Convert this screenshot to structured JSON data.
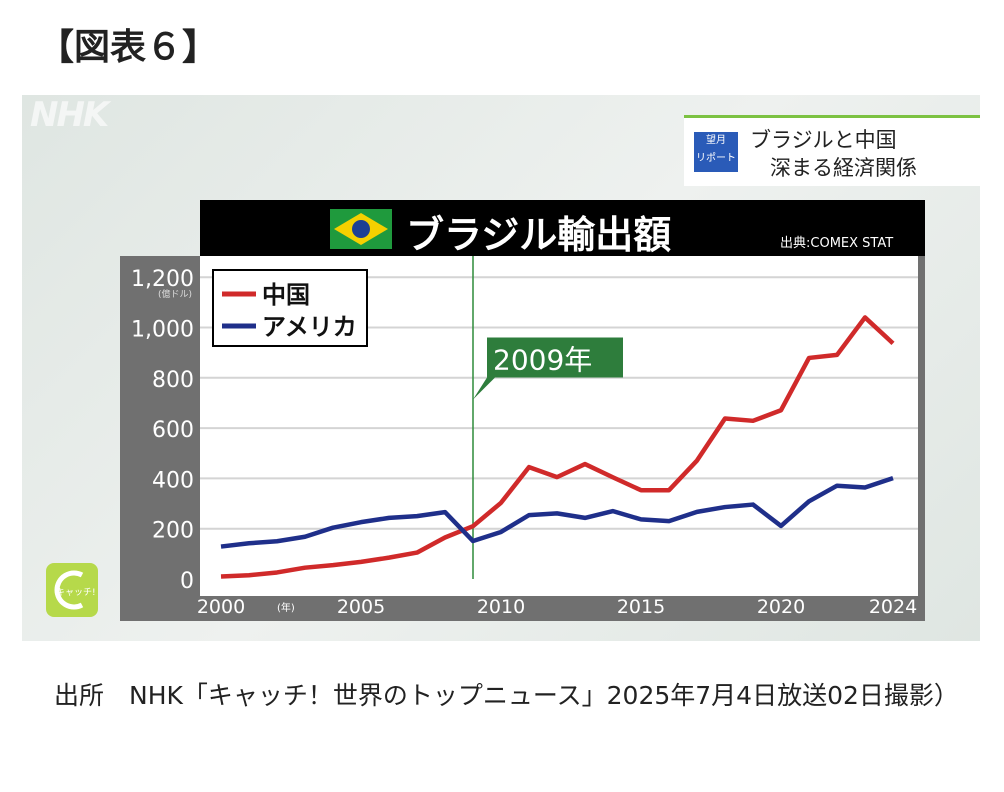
{
  "figure_label": "【図表６】",
  "frame": {
    "broadcaster_logo": "NHK",
    "report_badge": "望月\nリポート",
    "report_title_line1": "ブラジルと中国",
    "report_title_line2": "深まる経済関係",
    "program_logo": "キャッチ!"
  },
  "caption": "出所　NHK「キャッチ！世界のトップニュース」2025年7月4日放送02日撮影）",
  "chart_data": {
    "type": "line",
    "title": "ブラジル輸出額",
    "source": "出典:COMEX STAT",
    "ylabel": "(億ドル)",
    "xlabel": "(年)",
    "ylim": [
      0,
      1200
    ],
    "yticks": [
      "0",
      "200",
      "400",
      "600",
      "800",
      "1,000",
      "1,200"
    ],
    "xticks": [
      "2000",
      "2005",
      "2010",
      "2015",
      "2020",
      "2024"
    ],
    "grid": true,
    "legend": "top-left",
    "annotation": "2009年",
    "annotation_x": 2009,
    "x": [
      2000,
      2001,
      2002,
      2003,
      2004,
      2005,
      2006,
      2007,
      2008,
      2009,
      2010,
      2011,
      2012,
      2013,
      2014,
      2015,
      2016,
      2017,
      2018,
      2019,
      2020,
      2021,
      2022,
      2023,
      2024
    ],
    "series": [
      {
        "name": "中国",
        "color": "#d02a2a",
        "values": [
          10,
          15,
          26,
          45,
          55,
          68,
          85,
          105,
          165,
          210,
          303,
          445,
          405,
          457,
          404,
          353,
          353,
          471,
          638,
          629,
          671,
          879,
          891,
          1040,
          937
        ]
      },
      {
        "name": "アメリカ",
        "color": "#1f2f8a",
        "values": [
          129,
          142,
          150,
          168,
          204,
          226,
          243,
          250,
          266,
          151,
          187,
          254,
          261,
          243,
          270,
          237,
          230,
          267,
          286,
          296,
          211,
          309,
          371,
          364,
          401
        ]
      }
    ]
  }
}
